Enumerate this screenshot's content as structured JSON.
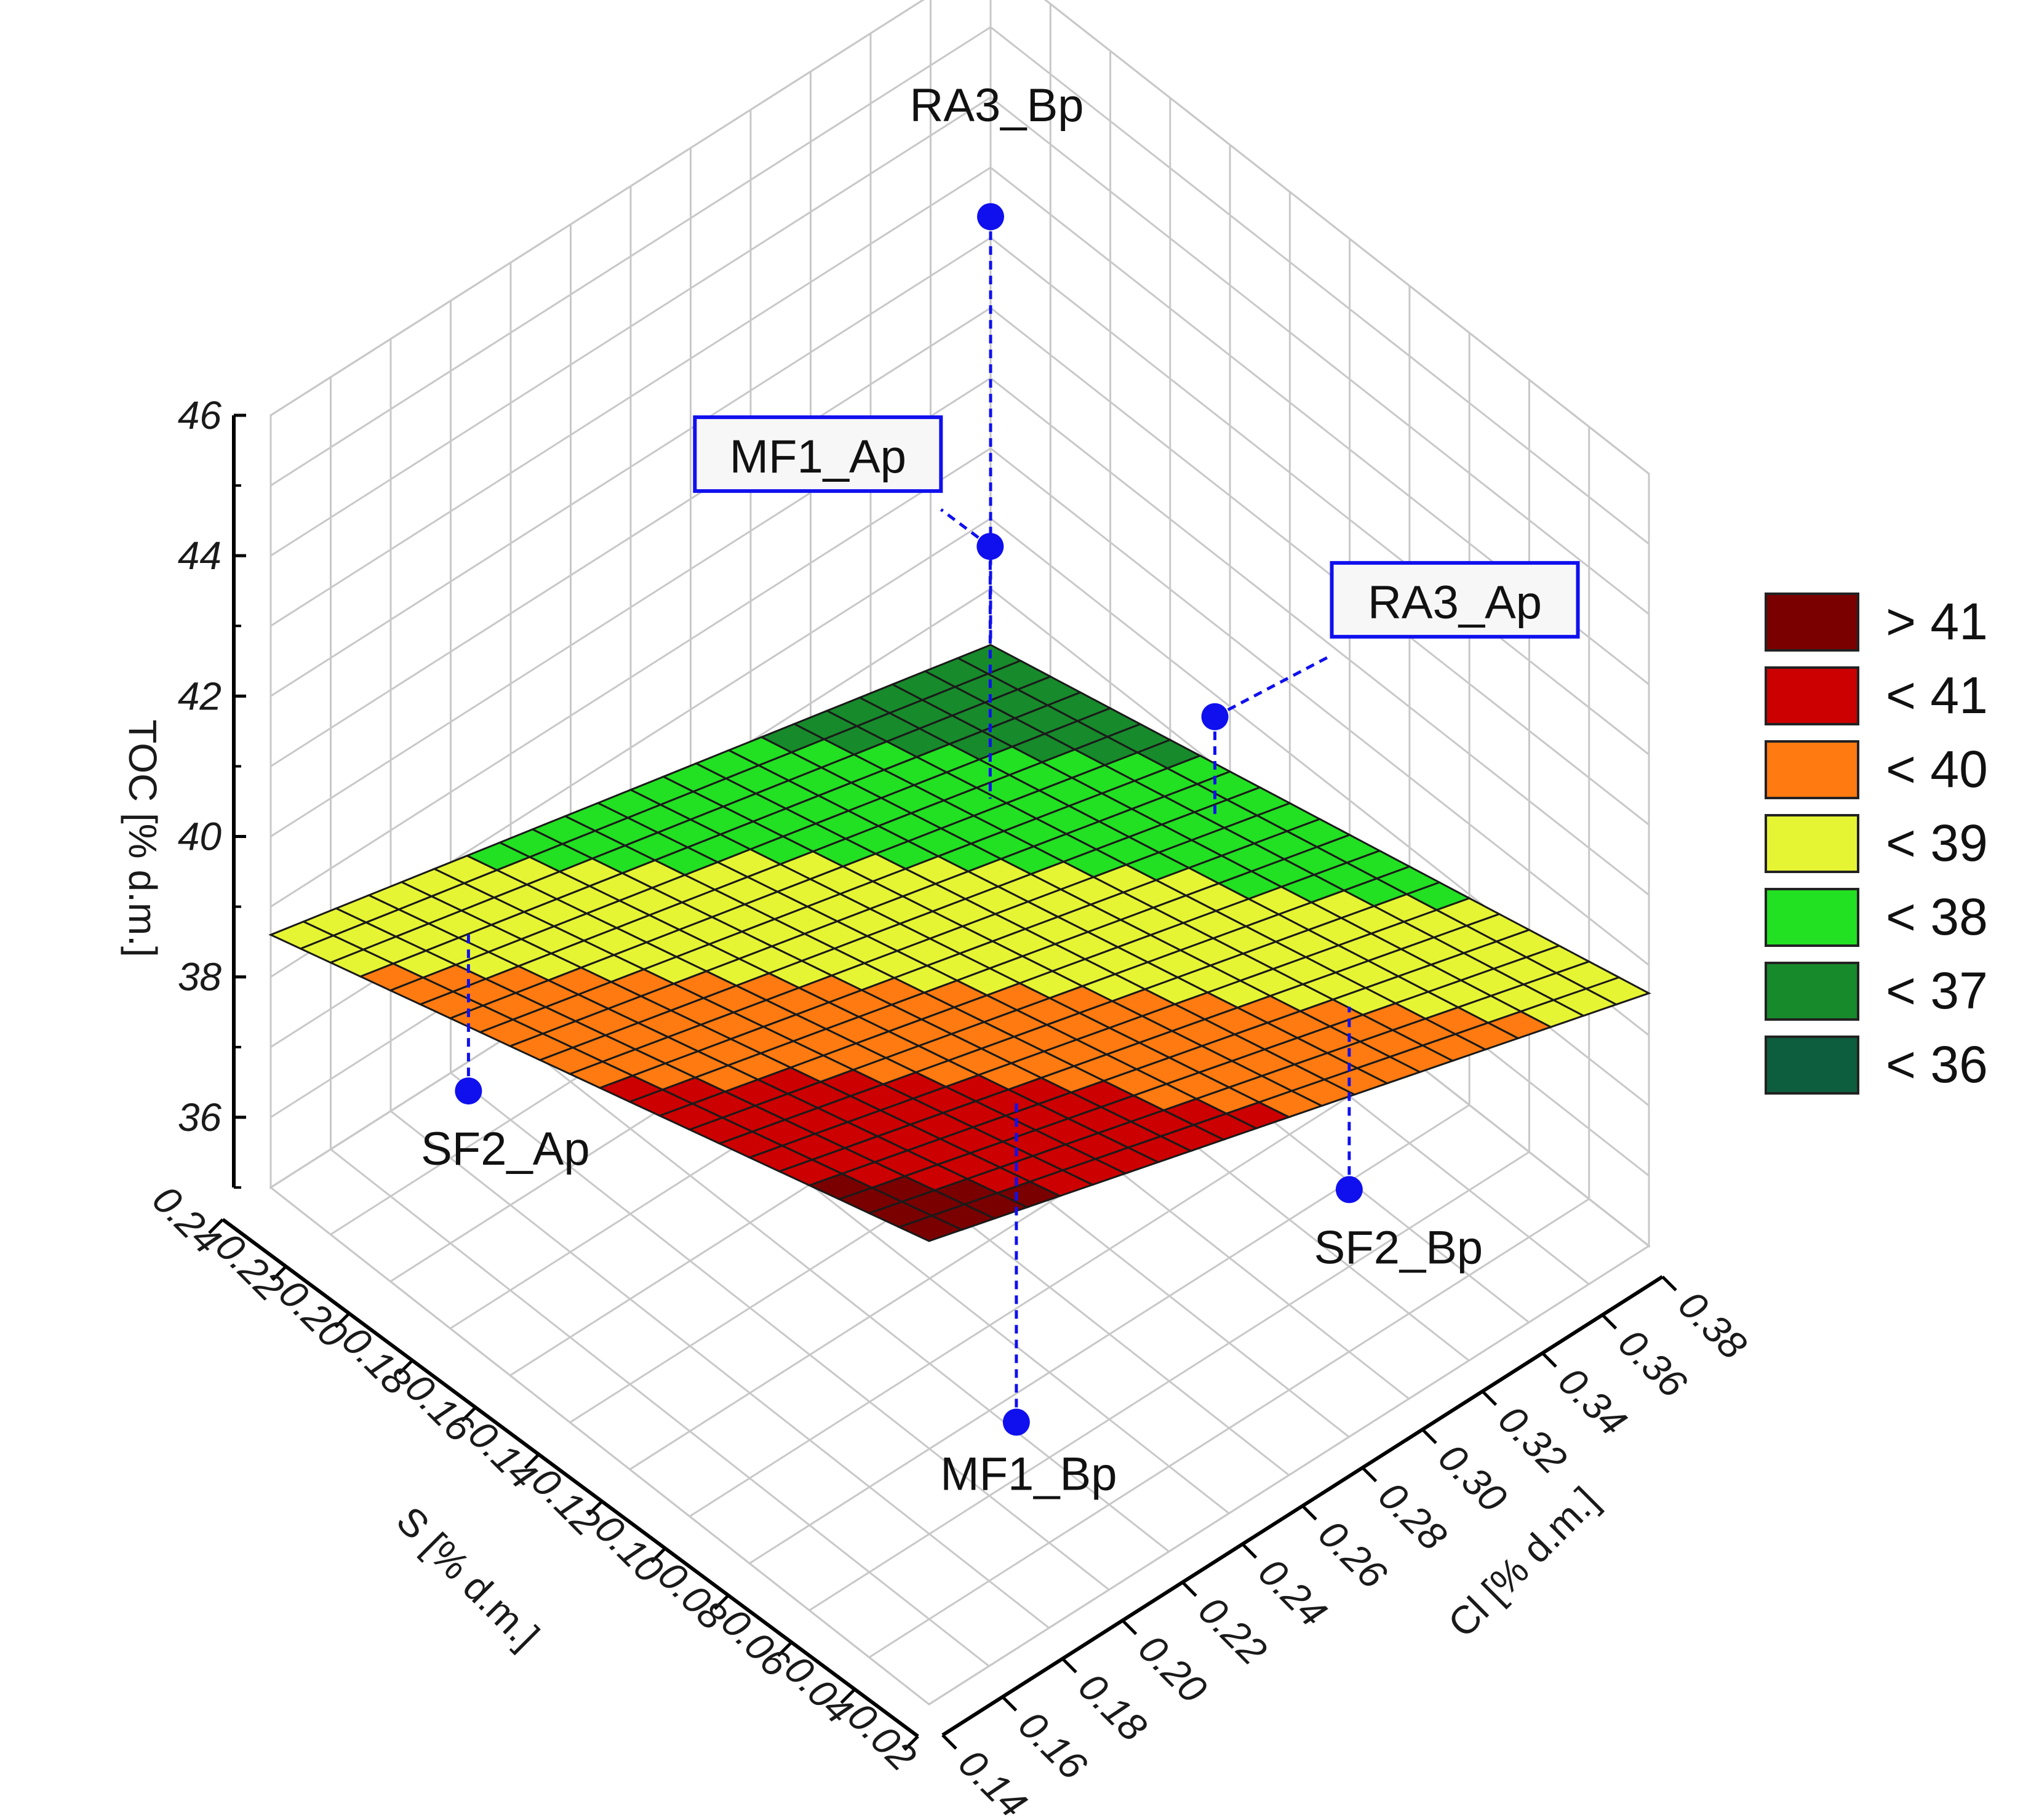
{
  "chart_data": {
    "type": "3d-surface",
    "z_label": "TOC [% d.m.]",
    "x_label": "S [% d.m.]",
    "y_label": "Cl [% d.m.]",
    "z_ticks": [
      "36",
      "38",
      "40",
      "42",
      "44",
      "46"
    ],
    "x_ticks": [
      "0.24",
      "0.22",
      "0.20",
      "0.18",
      "0.16",
      "0.14",
      "0.12",
      "0.10",
      "0.08",
      "0.06",
      "0.04",
      "0.02"
    ],
    "y_ticks": [
      "0.38",
      "0.36",
      "0.34",
      "0.32",
      "0.30",
      "0.28",
      "0.26",
      "0.24",
      "0.22",
      "0.20",
      "0.18",
      "0.16",
      "0.14"
    ],
    "xlim": [
      0.02,
      0.24
    ],
    "ylim": [
      0.14,
      0.38
    ],
    "zlim": [
      35,
      46
    ],
    "surface": {
      "description": "fitted linear plane",
      "corners": [
        {
          "s": 0.02,
          "cl": 0.14,
          "toc": 41.6
        },
        {
          "s": 0.24,
          "cl": 0.14,
          "toc": 38.6
        },
        {
          "s": 0.02,
          "cl": 0.38,
          "toc": 38.6
        },
        {
          "s": 0.24,
          "cl": 0.38,
          "toc": 36.2
        }
      ]
    },
    "points": [
      {
        "label": "RA3_Bp",
        "s": 0.24,
        "cl": 0.38,
        "toc": 42.3,
        "boxed": false
      },
      {
        "label": "MF1_Ap",
        "s": 0.184,
        "cl": 0.324,
        "toc": 41.0,
        "boxed": true
      },
      {
        "label": "RA3_Ap",
        "s": 0.145,
        "cl": 0.36,
        "toc": 38.9,
        "boxed": true
      },
      {
        "label": "SF2_Ap",
        "s": 0.21,
        "cl": 0.176,
        "toc": 36.4,
        "boxed": false
      },
      {
        "label": "SF2_Bp",
        "s": 0.055,
        "cl": 0.315,
        "toc": 36.4,
        "boxed": false
      },
      {
        "label": "MF1_Bp",
        "s": 0.065,
        "cl": 0.214,
        "toc": 35.5,
        "boxed": false
      }
    ],
    "legend": {
      "position": "right",
      "entries": [
        {
          "label": "> 41",
          "color": "#7a0000"
        },
        {
          "label": "< 41",
          "color": "#cc0000"
        },
        {
          "label": "< 40",
          "color": "#ff7a10"
        },
        {
          "label": "< 39",
          "color": "#e6f533"
        },
        {
          "label": "< 38",
          "color": "#22e022"
        },
        {
          "label": "< 37",
          "color": "#178a2b"
        },
        {
          "label": "< 36",
          "color": "#0c5e3e"
        }
      ]
    },
    "point_color": "#1010ee",
    "grid": true
  }
}
